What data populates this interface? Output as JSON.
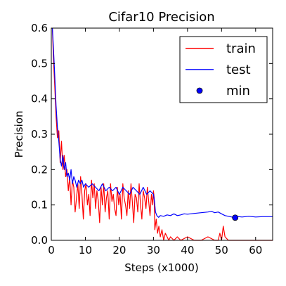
{
  "chart_data": {
    "type": "line",
    "title": "Cifar10 Precision",
    "xlabel": "Steps (x1000)",
    "ylabel": "Precision",
    "xlim": [
      0,
      65
    ],
    "ylim": [
      0,
      0.6
    ],
    "x_ticks": [
      "0",
      "10",
      "20",
      "30",
      "40",
      "50",
      "60"
    ],
    "y_ticks": [
      "0.0",
      "0.1",
      "0.2",
      "0.3",
      "0.4",
      "0.5",
      "0.6"
    ],
    "grid": false,
    "legend_position": "top-right",
    "series": [
      {
        "name": "train",
        "color": "#ff0000",
        "x": [
          0.3,
          0.6,
          1.0,
          1.4,
          1.8,
          2.2,
          2.6,
          3.0,
          3.4,
          3.8,
          4.2,
          4.6,
          5.0,
          5.4,
          5.8,
          6.2,
          6.6,
          7.0,
          7.4,
          7.8,
          8.2,
          8.6,
          9.0,
          9.4,
          9.8,
          10.2,
          10.6,
          11.0,
          11.4,
          11.8,
          12.2,
          12.6,
          13.0,
          13.4,
          13.8,
          14.2,
          14.6,
          15.0,
          15.4,
          15.8,
          16.2,
          16.6,
          17.0,
          17.4,
          17.8,
          18.2,
          18.6,
          19.0,
          19.4,
          19.8,
          20.2,
          20.6,
          21.0,
          21.4,
          21.8,
          22.2,
          22.6,
          23.0,
          23.4,
          23.8,
          24.2,
          24.6,
          25.0,
          25.4,
          25.8,
          26.2,
          26.6,
          27.0,
          27.4,
          27.8,
          28.2,
          28.6,
          29.0,
          29.4,
          29.8,
          30.0,
          30.2,
          30.4,
          30.8,
          31.2,
          31.6,
          32.0,
          32.5,
          33.0,
          33.5,
          34.0,
          34.5,
          35.0,
          36.0,
          37.0,
          38.0,
          40.0,
          42.0,
          44.0,
          46.0,
          48.0,
          49.0,
          49.5,
          50.0,
          50.5,
          51.0,
          52.0,
          54.0,
          56.0,
          58.0,
          60.0,
          62.0,
          65.0
        ],
        "y": [
          0.6,
          0.52,
          0.44,
          0.35,
          0.29,
          0.31,
          0.22,
          0.28,
          0.2,
          0.24,
          0.18,
          0.2,
          0.14,
          0.18,
          0.1,
          0.17,
          0.15,
          0.08,
          0.12,
          0.16,
          0.09,
          0.18,
          0.13,
          0.06,
          0.14,
          0.16,
          0.1,
          0.13,
          0.07,
          0.17,
          0.12,
          0.16,
          0.09,
          0.14,
          0.11,
          0.05,
          0.15,
          0.1,
          0.16,
          0.08,
          0.12,
          0.14,
          0.06,
          0.16,
          0.11,
          0.13,
          0.09,
          0.07,
          0.15,
          0.1,
          0.13,
          0.06,
          0.16,
          0.12,
          0.1,
          0.07,
          0.14,
          0.09,
          0.16,
          0.11,
          0.05,
          0.13,
          0.12,
          0.08,
          0.16,
          0.1,
          0.06,
          0.14,
          0.12,
          0.09,
          0.15,
          0.11,
          0.07,
          0.13,
          0.1,
          0.14,
          0.12,
          0.03,
          0.06,
          0.02,
          0.04,
          0.01,
          0.03,
          0.0,
          0.02,
          0.01,
          0.0,
          0.01,
          0.0,
          0.01,
          0.0,
          0.01,
          0.0,
          0.0,
          0.01,
          0.0,
          0.0,
          0.02,
          0.0,
          0.04,
          0.01,
          0.0,
          0.0,
          0.0,
          0.0,
          0.0,
          0.0,
          0.0
        ]
      },
      {
        "name": "test",
        "color": "#0000ff",
        "x": [
          0.3,
          0.6,
          1.0,
          1.4,
          1.8,
          2.2,
          2.6,
          3.0,
          3.4,
          3.8,
          4.2,
          4.6,
          5.0,
          5.4,
          5.8,
          6.2,
          6.6,
          7.0,
          7.5,
          8.0,
          8.5,
          9.0,
          9.5,
          10.0,
          11.0,
          12.0,
          13.0,
          14.0,
          15.0,
          16.0,
          17.0,
          18.0,
          19.0,
          20.0,
          21.0,
          22.0,
          23.0,
          24.0,
          25.0,
          26.0,
          27.0,
          28.0,
          29.0,
          30.0,
          30.3,
          30.6,
          31.0,
          31.5,
          32.0,
          33.0,
          34.0,
          35.0,
          36.0,
          37.0,
          38.0,
          39.0,
          40.0,
          42.0,
          44.0,
          46.0,
          47.0,
          48.0,
          49.0,
          50.0,
          51.0,
          52.0,
          53.0,
          54.0,
          55.0,
          56.0,
          58.0,
          60.0,
          62.0,
          64.0,
          65.0
        ],
        "y": [
          0.6,
          0.55,
          0.47,
          0.38,
          0.32,
          0.28,
          0.23,
          0.21,
          0.24,
          0.2,
          0.22,
          0.18,
          0.19,
          0.17,
          0.2,
          0.16,
          0.18,
          0.17,
          0.15,
          0.17,
          0.16,
          0.17,
          0.15,
          0.16,
          0.15,
          0.16,
          0.15,
          0.14,
          0.16,
          0.14,
          0.15,
          0.14,
          0.15,
          0.13,
          0.15,
          0.14,
          0.13,
          0.15,
          0.14,
          0.13,
          0.15,
          0.13,
          0.14,
          0.13,
          0.11,
          0.08,
          0.07,
          0.065,
          0.07,
          0.068,
          0.072,
          0.07,
          0.075,
          0.07,
          0.072,
          0.075,
          0.074,
          0.076,
          0.078,
          0.08,
          0.082,
          0.078,
          0.08,
          0.075,
          0.07,
          0.068,
          0.066,
          0.064,
          0.067,
          0.066,
          0.068,
          0.066,
          0.067,
          0.067,
          0.067
        ]
      },
      {
        "name": "min",
        "type": "scatter",
        "color": "#0000ff",
        "x": [
          54
        ],
        "y": [
          0.064
        ]
      }
    ]
  }
}
